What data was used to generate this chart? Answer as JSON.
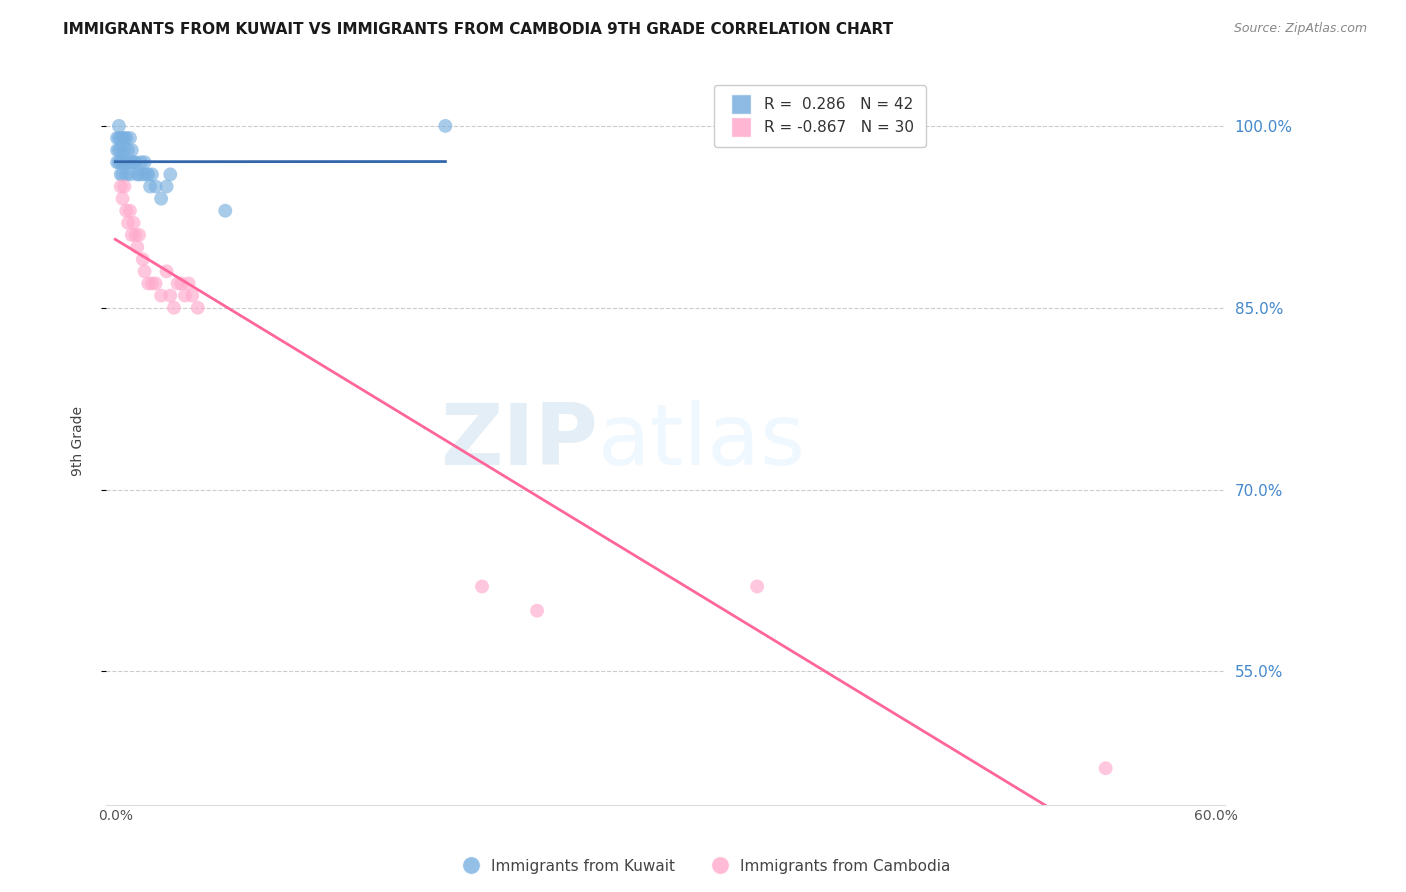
{
  "title": "IMMIGRANTS FROM KUWAIT VS IMMIGRANTS FROM CAMBODIA 9TH GRADE CORRELATION CHART",
  "source": "Source: ZipAtlas.com",
  "ylabel": "9th Grade",
  "xlim": [
    -0.005,
    0.605
  ],
  "ylim": [
    0.44,
    1.04
  ],
  "yticks": [
    1.0,
    0.85,
    0.7,
    0.55
  ],
  "ytick_labels": [
    "100.0%",
    "85.0%",
    "70.0%",
    "55.0%"
  ],
  "xticks": [
    0.0,
    0.1,
    0.2,
    0.3,
    0.4,
    0.5,
    0.6
  ],
  "xtick_labels": [
    "0.0%",
    "",
    "",
    "",
    "",
    "",
    "60.0%"
  ],
  "kuwait_R": 0.286,
  "kuwait_N": 42,
  "cambodia_R": -0.867,
  "cambodia_N": 30,
  "kuwait_color": "#7ab0e0",
  "cambodia_color": "#ffaacc",
  "kuwait_line_color": "#3366aa",
  "cambodia_line_color": "#ff6699",
  "kuwait_x": [
    0.001,
    0.001,
    0.001,
    0.002,
    0.002,
    0.002,
    0.002,
    0.003,
    0.003,
    0.003,
    0.003,
    0.004,
    0.004,
    0.004,
    0.005,
    0.005,
    0.005,
    0.006,
    0.006,
    0.007,
    0.007,
    0.008,
    0.008,
    0.009,
    0.009,
    0.01,
    0.011,
    0.012,
    0.013,
    0.014,
    0.015,
    0.016,
    0.017,
    0.018,
    0.019,
    0.02,
    0.022,
    0.025,
    0.028,
    0.03,
    0.06,
    0.18
  ],
  "kuwait_y": [
    0.99,
    0.98,
    0.97,
    1.0,
    0.99,
    0.98,
    0.97,
    0.99,
    0.98,
    0.97,
    0.96,
    0.99,
    0.97,
    0.96,
    0.99,
    0.98,
    0.97,
    0.99,
    0.96,
    0.98,
    0.97,
    0.99,
    0.96,
    0.98,
    0.97,
    0.97,
    0.97,
    0.96,
    0.96,
    0.97,
    0.96,
    0.97,
    0.96,
    0.96,
    0.95,
    0.96,
    0.95,
    0.94,
    0.95,
    0.96,
    0.93,
    1.0
  ],
  "cambodia_x": [
    0.003,
    0.004,
    0.005,
    0.006,
    0.007,
    0.008,
    0.009,
    0.01,
    0.011,
    0.012,
    0.013,
    0.015,
    0.016,
    0.018,
    0.02,
    0.022,
    0.025,
    0.028,
    0.03,
    0.032,
    0.034,
    0.036,
    0.038,
    0.04,
    0.042,
    0.045,
    0.2,
    0.23,
    0.35,
    0.54
  ],
  "cambodia_y": [
    0.95,
    0.94,
    0.95,
    0.93,
    0.92,
    0.93,
    0.91,
    0.92,
    0.91,
    0.9,
    0.91,
    0.89,
    0.88,
    0.87,
    0.87,
    0.87,
    0.86,
    0.88,
    0.86,
    0.85,
    0.87,
    0.87,
    0.86,
    0.87,
    0.86,
    0.85,
    0.62,
    0.6,
    0.62,
    0.47
  ],
  "watermark_zip": "ZIP",
  "watermark_atlas": "atlas",
  "background_color": "#ffffff",
  "grid_color": "#cccccc",
  "axis_color": "#4488cc",
  "title_fontsize": 11,
  "label_fontsize": 10
}
